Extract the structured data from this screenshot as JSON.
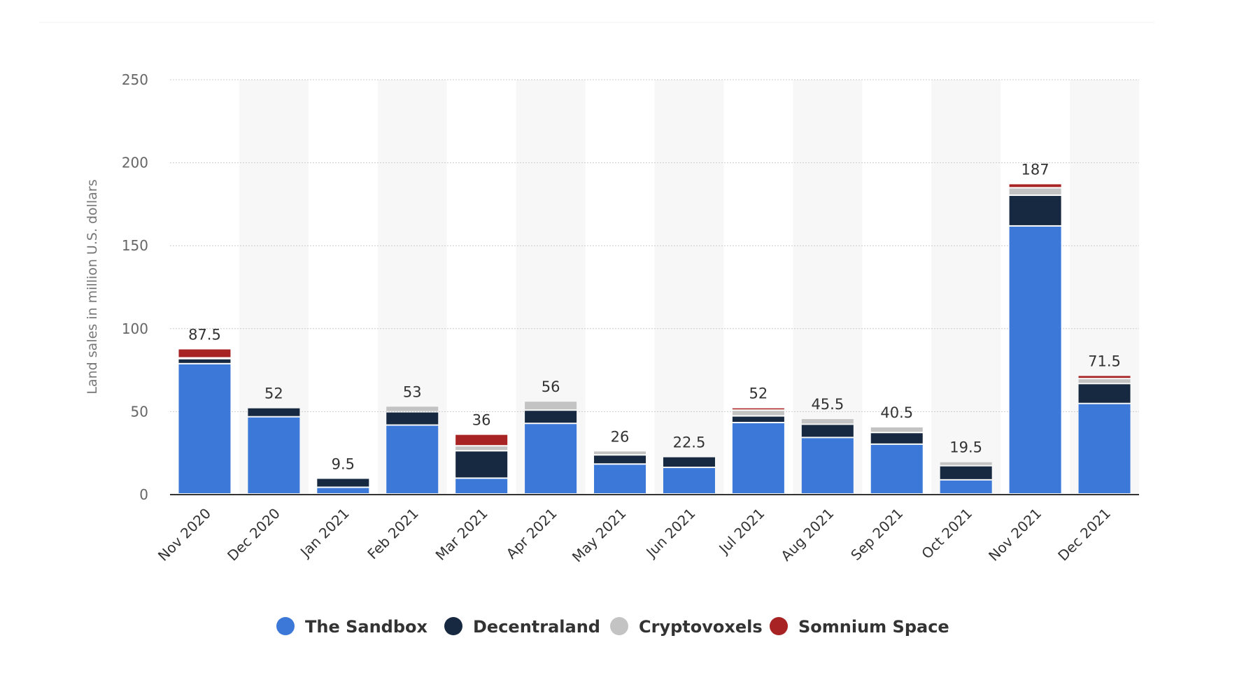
{
  "chart_data": {
    "type": "bar",
    "stacked": true,
    "categories": [
      "Nov 2020",
      "Dec 2020",
      "Jan 2021",
      "Feb 2021",
      "Mar 2021",
      "Apr 2021",
      "May 2021",
      "Jun 2021",
      "Jul 2021",
      "Aug 2021",
      "Sep 2021",
      "Oct 2021",
      "Nov 2021",
      "Dec 2021"
    ],
    "series": [
      {
        "name": "The Sandbox",
        "color": "#3b78d8",
        "values": [
          78.5,
          46.5,
          4,
          41.5,
          9.5,
          42.5,
          18,
          16,
          43,
          34,
          30,
          8.5,
          161.5,
          54.5
        ]
      },
      {
        "name": "Decentraland",
        "color": "#172940",
        "values": [
          3,
          5.5,
          5.5,
          8,
          16.5,
          8,
          5.5,
          6.5,
          4,
          8,
          7,
          8.5,
          18.5,
          12
        ]
      },
      {
        "name": "Cryptovoxels",
        "color": "#c3c3c3",
        "values": [
          0.5,
          0,
          0,
          3.5,
          3,
          5.5,
          2.5,
          0,
          3.5,
          3.5,
          3.5,
          2.5,
          4.5,
          3
        ]
      },
      {
        "name": "Somnium Space",
        "color": "#a82324",
        "values": [
          5.5,
          0,
          0,
          0,
          7,
          0,
          0,
          0,
          1.5,
          0,
          0,
          0,
          2.5,
          2
        ]
      }
    ],
    "totals": [
      "87.5",
      "52",
      "9.5",
      "53",
      "36",
      "56",
      "26",
      "22.5",
      "52",
      "45.5",
      "40.5",
      "19.5",
      "187",
      "71.5"
    ],
    "ylabel": "Land sales in million U.S. dollars",
    "ylim": [
      0,
      250
    ],
    "yticks": [
      "0",
      "50",
      "100",
      "150",
      "200",
      "250"
    ],
    "grid": true,
    "legend_position": "bottom"
  }
}
